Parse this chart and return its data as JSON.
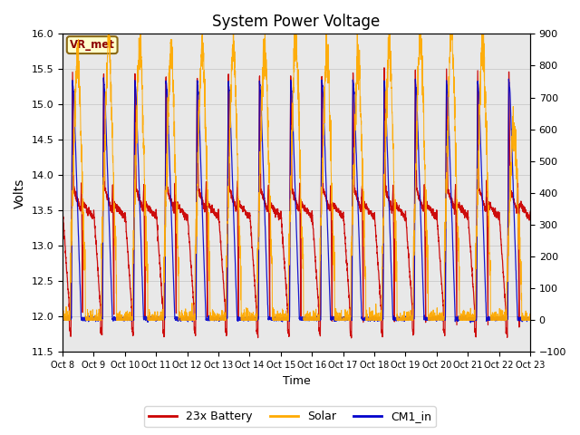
{
  "title": "System Power Voltage",
  "xlabel": "Time",
  "ylabel_left": "Volts",
  "ylim_left": [
    11.5,
    16.0
  ],
  "ylim_right": [
    -100,
    900
  ],
  "yticks_left": [
    11.5,
    12.0,
    12.5,
    13.0,
    13.5,
    14.0,
    14.5,
    15.0,
    15.5,
    16.0
  ],
  "yticks_right": [
    -100,
    0,
    100,
    200,
    300,
    400,
    500,
    600,
    700,
    800,
    900
  ],
  "xtick_labels": [
    "Oct 8",
    "Oct 9",
    "Oct 10",
    "Oct 11",
    "Oct 12",
    "Oct 13",
    "Oct 14",
    "Oct 15",
    "Oct 16",
    "Oct 17",
    "Oct 18",
    "Oct 19",
    "Oct 20",
    "Oct 21",
    "Oct 22",
    "Oct 23"
  ],
  "n_days": 16,
  "color_battery": "#cc0000",
  "color_solar": "#ffaa00",
  "color_cm1": "#0000cc",
  "color_grid": "#bbbbbb",
  "color_bg": "#e8e8e8",
  "legend_labels": [
    "23x Battery",
    "Solar",
    "CM1_in"
  ],
  "annotation_text": "VR_met",
  "annotation_color": "#8b0000",
  "annotation_bg": "#ffffcc",
  "figsize": [
    6.4,
    4.8
  ],
  "dpi": 100
}
